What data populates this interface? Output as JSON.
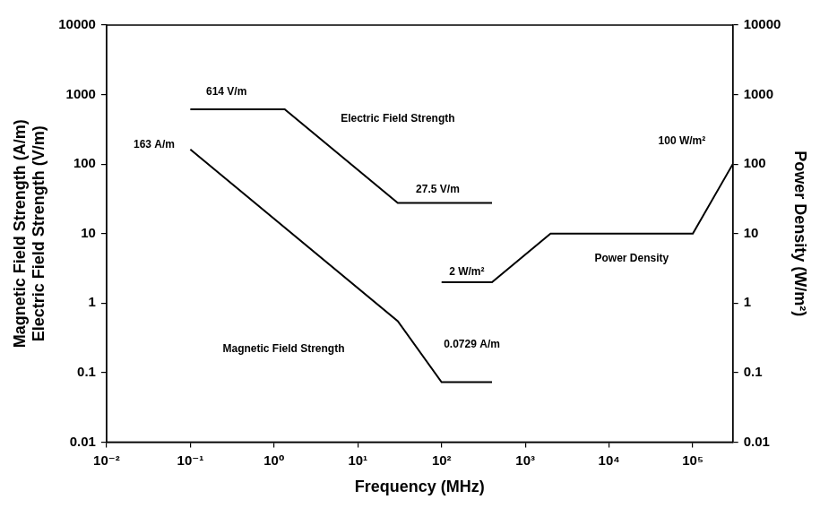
{
  "chart_data": {
    "type": "line",
    "x_label": "Frequency (MHz)",
    "y_label": [
      "Magnetic Field Strength (A/m)",
      "Electric Field Strength (V/m)"
    ],
    "y2_label": "Power Density (W/m²)",
    "log": true,
    "grid": false,
    "xlim": [
      0.01,
      300000
    ],
    "xticks": [
      {
        "value": 0.01,
        "label": "10⁻²"
      },
      {
        "value": 0.1,
        "label": "10⁻¹"
      },
      {
        "value": 1,
        "label": "10⁰"
      },
      {
        "value": 10,
        "label": "10¹"
      },
      {
        "value": 100,
        "label": "10²"
      },
      {
        "value": 1000,
        "label": "10³"
      },
      {
        "value": 10000,
        "label": "10⁴"
      },
      {
        "value": 100000,
        "label": "10⁵"
      }
    ],
    "ylim": [
      0.01,
      10000
    ],
    "yticks": [
      0.01,
      0.1,
      1,
      10,
      100,
      1000,
      10000
    ],
    "y2lim": [
      0.01,
      10000
    ],
    "y2ticks": [
      0.01,
      0.1,
      1,
      10,
      100,
      1000,
      10000
    ],
    "series": [
      {
        "name": "Electric Field Strength",
        "color": "#000000",
        "line_style": "solid",
        "x": [
          0.1,
          1.34,
          30,
          400
        ],
        "values": [
          614,
          614,
          27.5,
          27.5
        ]
      },
      {
        "name": "Magnetic Field Strength",
        "color": "#000000",
        "line_style": "solid",
        "x": [
          0.1,
          30,
          100,
          400
        ],
        "values": [
          163,
          0.55,
          0.0729,
          0.0729
        ]
      },
      {
        "name": "Power Density",
        "color": "#000000",
        "line_style": "solid",
        "axis": "y2",
        "x": [
          100,
          400,
          2000,
          100000,
          300000
        ],
        "values": [
          2,
          2,
          10,
          10,
          100
        ]
      }
    ],
    "annotations": [
      {
        "text": "614 V/m",
        "x": 0.27,
        "y": 1100
      },
      {
        "text": "Electric Field Strength",
        "x": 30,
        "y": 450
      },
      {
        "text": "27.5 V/m",
        "x": 90,
        "y": 43
      },
      {
        "text": "163 A/m",
        "x": 0.037,
        "y": 190
      },
      {
        "text": "Magnetic Field Strength",
        "x": 1.3,
        "y": 0.22
      },
      {
        "text": "0.0729 A/m",
        "x": 230,
        "y": 0.25
      },
      {
        "text": "2 W/m²",
        "x": 200,
        "y": 2.8,
        "axis": "y2"
      },
      {
        "text": "Power Density",
        "x": 18600,
        "y": 4.4,
        "axis": "y2"
      },
      {
        "text": "100 W/m²",
        "x": 74000,
        "y": 210,
        "axis": "y2"
      }
    ]
  }
}
